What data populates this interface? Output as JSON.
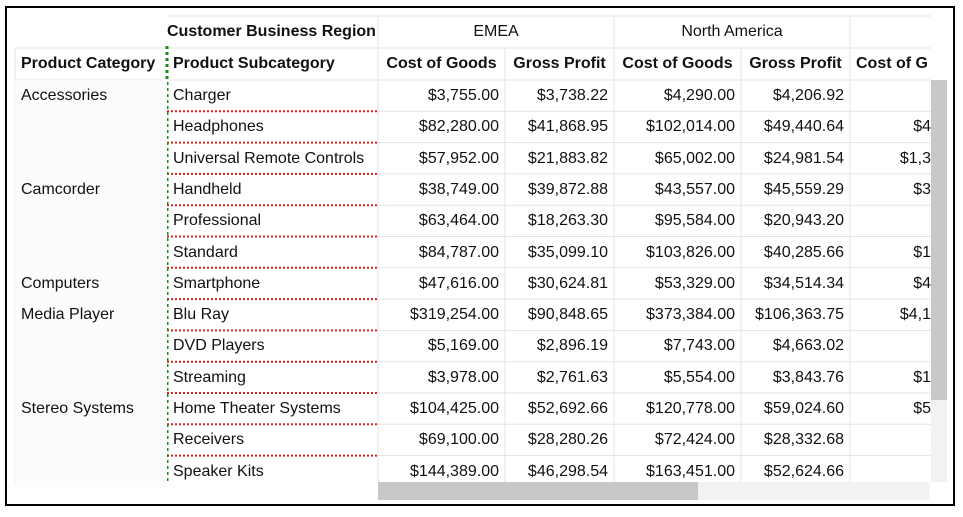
{
  "header": {
    "region_label": "Customer Business Region",
    "regions": [
      "EMEA",
      "North America"
    ],
    "category_label": "Product Category",
    "subcategory_label": "Product Subcategory",
    "measures": [
      "Cost of Goods",
      "Gross Profit",
      "Cost of Goods",
      "Gross Profit",
      "Cost of G"
    ]
  },
  "groups": [
    {
      "category": "Accessories",
      "rows": [
        {
          "subcategory": "Charger",
          "values": [
            "$3,755.00",
            "$3,738.22",
            "$4,290.00",
            "$4,206.92",
            ""
          ]
        },
        {
          "subcategory": "Headphones",
          "values": [
            "$82,280.00",
            "$41,868.95",
            "$102,014.00",
            "$49,440.64",
            "$4"
          ]
        },
        {
          "subcategory": "Universal Remote Controls",
          "values": [
            "$57,952.00",
            "$21,883.82",
            "$65,002.00",
            "$24,981.54",
            "$1,3"
          ]
        }
      ]
    },
    {
      "category": "Camcorder",
      "rows": [
        {
          "subcategory": "Handheld",
          "values": [
            "$38,749.00",
            "$39,872.88",
            "$43,557.00",
            "$45,559.29",
            "$3"
          ]
        },
        {
          "subcategory": "Professional",
          "values": [
            "$63,464.00",
            "$18,263.30",
            "$95,584.00",
            "$20,943.20",
            ""
          ]
        },
        {
          "subcategory": "Standard",
          "values": [
            "$84,787.00",
            "$35,099.10",
            "$103,826.00",
            "$40,285.66",
            "$1"
          ]
        }
      ]
    },
    {
      "category": "Computers",
      "rows": [
        {
          "subcategory": "Smartphone",
          "values": [
            "$47,616.00",
            "$30,624.81",
            "$53,329.00",
            "$34,514.34",
            "$4"
          ]
        }
      ]
    },
    {
      "category": "Media Player",
      "rows": [
        {
          "subcategory": "Blu Ray",
          "values": [
            "$319,254.00",
            "$90,848.65",
            "$373,384.00",
            "$106,363.75",
            "$4,1"
          ]
        },
        {
          "subcategory": "DVD Players",
          "values": [
            "$5,169.00",
            "$2,896.19",
            "$7,743.00",
            "$4,663.02",
            ""
          ]
        },
        {
          "subcategory": "Streaming",
          "values": [
            "$3,978.00",
            "$2,761.63",
            "$5,554.00",
            "$3,843.76",
            "$1"
          ]
        }
      ]
    },
    {
      "category": "Stereo Systems",
      "rows": [
        {
          "subcategory": "Home Theater Systems",
          "values": [
            "$104,425.00",
            "$52,692.66",
            "$120,778.00",
            "$59,024.60",
            "$5"
          ]
        },
        {
          "subcategory": "Receivers",
          "values": [
            "$69,100.00",
            "$28,280.26",
            "$72,424.00",
            "$28,332.68",
            ""
          ]
        },
        {
          "subcategory": "Speaker Kits",
          "values": [
            "$144,389.00",
            "$46,298.54",
            "$163,451.00",
            "$52,624.66",
            ""
          ]
        }
      ]
    }
  ],
  "colors": {
    "grid_line": "#e3e3e3",
    "category_separator": "#e02020",
    "column_divider": "#1a8a1a",
    "header_bg": "#ffffff",
    "category_bg": "#fcfbfd"
  }
}
